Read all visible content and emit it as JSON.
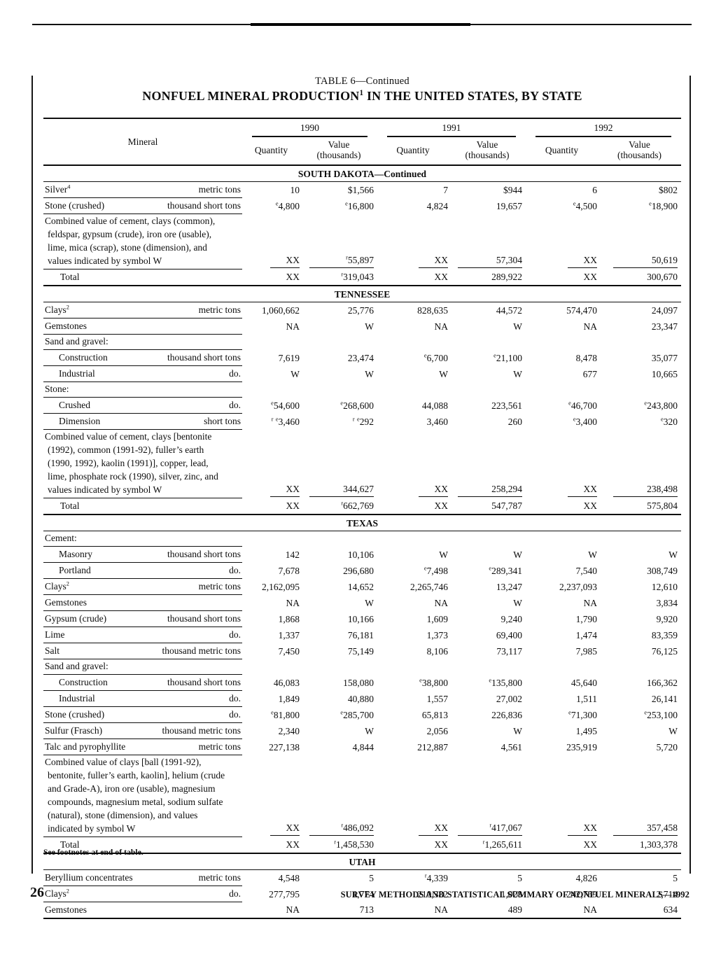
{
  "page": {
    "title_line1": "TABLE 6—Continued",
    "title_line2": "NONFUEL MINERAL PRODUCTION{1} IN THE UNITED STATES, BY STATE",
    "footnote": "See footnotes at end of table.",
    "page_number": "26",
    "running_footer": "SURVEY METHODS AND STATISTICAL SUMMARY OF NONFUEL MINERALS—1992"
  },
  "table": {
    "col_headers": {
      "mineral": "Mineral",
      "years": [
        "1990",
        "1991",
        "1992"
      ],
      "quantity": "Quantity",
      "value_line1": "Value",
      "value_line2": "(thousands)"
    },
    "sections": [
      {
        "name": "SOUTH DAKOTA—Continued",
        "rows": [
          {
            "type": "data",
            "label": "Silver{4}",
            "unit": "metric tons",
            "cells": [
              "10",
              "$1,566",
              "7",
              "$944",
              "6",
              "$802"
            ]
          },
          {
            "type": "data",
            "label": "Stone (crushed)",
            "unit": "thousand short tons",
            "cells": [
              "{e}4,800",
              "{e}16,800",
              "4,824",
              "19,657",
              "{e}4,500",
              "{e}18,900"
            ]
          },
          {
            "type": "paragraph",
            "lines": [
              "Combined value of cement, clays (common),",
              "feldspar, gypsum (crude), iron ore (usable),",
              "lime, mica (scrap), stone (dimension), and",
              "values indicated by symbol W"
            ],
            "cells": [
              "XX",
              "{r}55,897",
              "XX",
              "57,304",
              "XX",
              "50,619"
            ]
          },
          {
            "type": "total",
            "label": "Total",
            "cells": [
              "XX",
              "{r}319,043",
              "XX",
              "289,922",
              "XX",
              "300,670"
            ]
          }
        ]
      },
      {
        "name": "TENNESSEE",
        "rows": [
          {
            "type": "data",
            "label": "Clays{2}",
            "unit": "metric tons",
            "cells": [
              "1,060,662",
              "25,776",
              "828,635",
              "44,572",
              "574,470",
              "24,097"
            ]
          },
          {
            "type": "data",
            "label": "Gemstones",
            "unit": "",
            "cells": [
              "NA",
              "W",
              "NA",
              "W",
              "NA",
              "23,347"
            ]
          },
          {
            "type": "subheader",
            "label": "Sand and gravel:"
          },
          {
            "type": "data",
            "indent": true,
            "label": "Construction",
            "unit": "thousand short tons",
            "cells": [
              "7,619",
              "23,474",
              "{e}6,700",
              "{e}21,100",
              "8,478",
              "35,077"
            ]
          },
          {
            "type": "data",
            "indent": true,
            "label": "Industrial",
            "unit": "do.",
            "cells": [
              "W",
              "W",
              "W",
              "W",
              "677",
              "10,665"
            ]
          },
          {
            "type": "subheader",
            "label": "Stone:"
          },
          {
            "type": "data",
            "indent": true,
            "label": "Crushed",
            "unit": "do.",
            "cells": [
              "{e}54,600",
              "{e}268,600",
              "44,088",
              "223,561",
              "{e}46,700",
              "{e}243,800"
            ]
          },
          {
            "type": "data",
            "indent": true,
            "label": "Dimension",
            "unit": "short tons",
            "cells": [
              "{r} {e}3,460",
              "{r} {e}292",
              "3,460",
              "260",
              "{e}3,400",
              "{e}320"
            ]
          },
          {
            "type": "paragraph",
            "lines": [
              "Combined value of cement, clays [bentonite",
              "(1992), common (1991-92), fuller’s earth",
              "(1990, 1992), kaolin (1991)], copper, lead,",
              "lime, phosphate rock (1990), silver, zinc, and",
              "values indicated by symbol W"
            ],
            "cells": [
              "XX",
              "344,627",
              "XX",
              "258,294",
              "XX",
              "238,498"
            ]
          },
          {
            "type": "total",
            "label": "Total",
            "cells": [
              "XX",
              "{r}662,769",
              "XX",
              "547,787",
              "XX",
              "575,804"
            ]
          }
        ]
      },
      {
        "name": "TEXAS",
        "rows": [
          {
            "type": "subheader",
            "label": "Cement:"
          },
          {
            "type": "data",
            "indent": true,
            "label": "Masonry",
            "unit": "thousand short tons",
            "cells": [
              "142",
              "10,106",
              "W",
              "W",
              "W",
              "W"
            ]
          },
          {
            "type": "data",
            "indent": true,
            "label": "Portland",
            "unit": "do.",
            "cells": [
              "7,678",
              "296,680",
              "{e}7,498",
              "{e}289,341",
              "7,540",
              "308,749"
            ]
          },
          {
            "type": "data",
            "label": "Clays{2}",
            "unit": "metric tons",
            "cells": [
              "2,162,095",
              "14,652",
              "2,265,746",
              "13,247",
              "2,237,093",
              "12,610"
            ]
          },
          {
            "type": "data",
            "label": "Gemstones",
            "unit": "",
            "cells": [
              "NA",
              "W",
              "NA",
              "W",
              "NA",
              "3,834"
            ]
          },
          {
            "type": "data",
            "label": "Gypsum (crude)",
            "unit": "thousand short tons",
            "cells": [
              "1,868",
              "10,166",
              "1,609",
              "9,240",
              "1,790",
              "9,920"
            ]
          },
          {
            "type": "data",
            "label": "Lime",
            "unit": "do.",
            "cells": [
              "1,337",
              "76,181",
              "1,373",
              "69,400",
              "1,474",
              "83,359"
            ]
          },
          {
            "type": "data",
            "label": "Salt",
            "unit": "thousand metric tons",
            "cells": [
              "7,450",
              "75,149",
              "8,106",
              "73,117",
              "7,985",
              "76,125"
            ]
          },
          {
            "type": "subheader",
            "label": "Sand and gravel:"
          },
          {
            "type": "data",
            "indent": true,
            "label": "Construction",
            "unit": "thousand short tons",
            "cells": [
              "46,083",
              "158,080",
              "{e}38,800",
              "{e}135,800",
              "45,640",
              "166,362"
            ]
          },
          {
            "type": "data",
            "indent": true,
            "label": "Industrial",
            "unit": "do.",
            "cells": [
              "1,849",
              "40,880",
              "1,557",
              "27,002",
              "1,511",
              "26,141"
            ]
          },
          {
            "type": "data",
            "label": "Stone (crushed)",
            "unit": "do.",
            "cells": [
              "{e}81,800",
              "{e}285,700",
              "65,813",
              "226,836",
              "{e}71,300",
              "{e}253,100"
            ]
          },
          {
            "type": "data",
            "label": "Sulfur (Frasch)",
            "unit": "thousand metric tons",
            "cells": [
              "2,340",
              "W",
              "2,056",
              "W",
              "1,495",
              "W"
            ]
          },
          {
            "type": "data",
            "label": "Talc and pyrophyllite",
            "unit": "metric tons",
            "cells": [
              "227,138",
              "4,844",
              "212,887",
              "4,561",
              "235,919",
              "5,720"
            ]
          },
          {
            "type": "paragraph",
            "lines": [
              "Combined value of clays [ball (1991-92),",
              "bentonite, fuller’s earth, kaolin], helium (crude",
              "and Grade-A), iron ore (usable), magnesium",
              "compounds, magnesium metal, sodium sulfate",
              "(natural), stone (dimension), and values",
              "indicated by symbol W"
            ],
            "cells": [
              "XX",
              "{r}486,092",
              "XX",
              "{r}417,067",
              "XX",
              "357,458"
            ]
          },
          {
            "type": "total",
            "label": "Total",
            "cells": [
              "XX",
              "{r}1,458,530",
              "XX",
              "{r}1,265,611",
              "XX",
              "1,303,378"
            ]
          }
        ]
      },
      {
        "name": "UTAH",
        "rows": [
          {
            "type": "data",
            "label": "Beryllium concentrates",
            "unit": "metric tons",
            "cells": [
              "4,548",
              "5",
              "{r}4,339",
              "5",
              "4,826",
              "5"
            ]
          },
          {
            "type": "data",
            "label": "Clays{2}",
            "unit": "do.",
            "cells": [
              "277,795",
              "1,774",
              "210,382",
              "1,028",
              "242,769",
              "2,714"
            ]
          },
          {
            "type": "data",
            "label": "Gemstones",
            "unit": "",
            "cells": [
              "NA",
              "713",
              "NA",
              "489",
              "NA",
              "634"
            ]
          }
        ]
      }
    ]
  }
}
